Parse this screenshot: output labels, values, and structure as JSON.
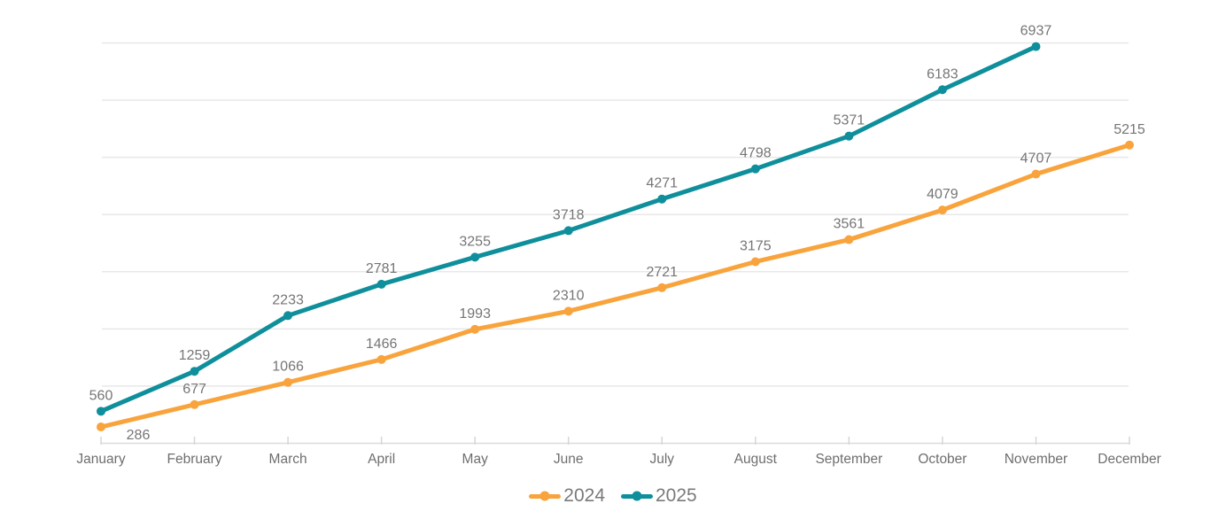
{
  "chart_data": {
    "type": "line",
    "title": "",
    "categories": [
      "January",
      "February",
      "March",
      "April",
      "May",
      "June",
      "July",
      "August",
      "September",
      "October",
      "November",
      "December"
    ],
    "series": [
      {
        "name": "2024",
        "color": "#F9A33C",
        "values": [
          286,
          677,
          1066,
          1466,
          1993,
          2310,
          2721,
          3175,
          3561,
          4079,
          4707,
          5215
        ]
      },
      {
        "name": "2025",
        "color": "#0E8F9B",
        "values": [
          560,
          1259,
          2233,
          2781,
          3255,
          3718,
          4271,
          4798,
          5371,
          6183,
          6937
        ]
      }
    ],
    "ylim": [
      0,
      7000
    ],
    "y_gridline_step": 1000,
    "grid": true,
    "y_axis_labels_visible": false,
    "data_labels_visible": true,
    "legend_position": "bottom"
  },
  "styles": {
    "data_label_color": "#757575",
    "axis_label_color": "#6e6e6e",
    "legend_text_color": "#7a7a7a",
    "gridline_color": "#e8e8e8",
    "axis_line_color": "#dcdcdc",
    "tick_color": "#d6d6d6",
    "background": "#ffffff"
  }
}
